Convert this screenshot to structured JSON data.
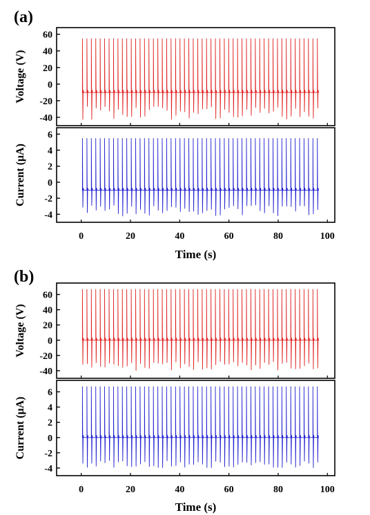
{
  "chart_data": [
    {
      "type": "line",
      "panel_label": "(a)",
      "xlabel": "Time (s)",
      "xlim": [
        -10,
        103
      ],
      "x_ticks": [
        0,
        20,
        40,
        60,
        80,
        100
      ],
      "pulse_train": {
        "start_s": 0.5,
        "period_s": 1.8,
        "count": 54
      },
      "subplots": [
        {
          "ylabel": "Voltage (V)",
          "color": "#e02020",
          "ylim": [
            -50,
            68
          ],
          "y_ticks": [
            -40,
            -20,
            0,
            20,
            40,
            60
          ],
          "baseline": -10,
          "peak": 55,
          "trough_range": [
            -43,
            -27
          ]
        },
        {
          "ylabel": "Current (μA)",
          "color": "#2020d0",
          "ylim": [
            -5,
            6.8
          ],
          "y_ticks": [
            -4,
            -2,
            0,
            2,
            4,
            6
          ],
          "baseline": -1,
          "peak": 5.5,
          "trough_range": [
            -4.3,
            -2.8
          ]
        }
      ]
    },
    {
      "type": "line",
      "panel_label": "(b)",
      "xlabel": "Time (s)",
      "xlim": [
        -10,
        103
      ],
      "x_ticks": [
        0,
        20,
        40,
        60,
        80,
        100
      ],
      "pulse_train": {
        "start_s": 0.5,
        "period_s": 1.8,
        "count": 54
      },
      "subplots": [
        {
          "ylabel": "Voltage (V)",
          "color": "#e02020",
          "ylim": [
            -50,
            75
          ],
          "y_ticks": [
            -40,
            -20,
            0,
            20,
            40,
            60
          ],
          "baseline": 0,
          "peak": 67,
          "trough_range": [
            -40,
            -28
          ]
        },
        {
          "ylabel": "Current (μA)",
          "color": "#2020d0",
          "ylim": [
            -5,
            7.5
          ],
          "y_ticks": [
            -4,
            -2,
            0,
            2,
            4,
            6
          ],
          "baseline": 0,
          "peak": 6.7,
          "trough_range": [
            -4.0,
            -3.0
          ]
        }
      ]
    }
  ]
}
